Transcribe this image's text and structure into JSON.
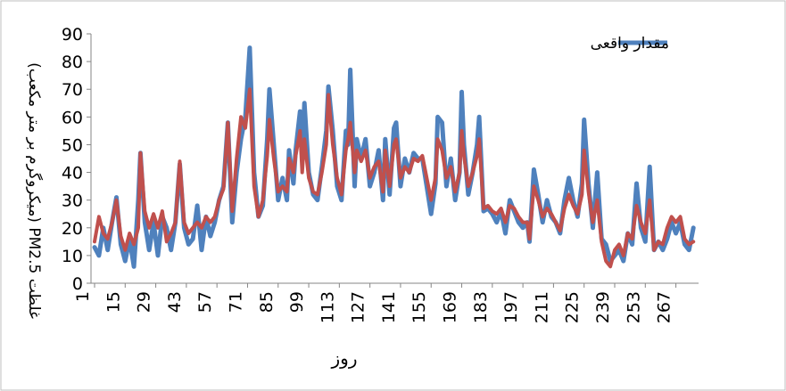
{
  "chart_data": {
    "type": "line",
    "xlabel": "روز",
    "ylabel": "غلظت PM2.5 (میکروگرم بر متر مکعب)",
    "ylim": [
      0,
      90
    ],
    "yticks": [
      0,
      10,
      20,
      30,
      40,
      50,
      60,
      70,
      80,
      90
    ],
    "xticks": [
      1,
      15,
      29,
      43,
      57,
      71,
      85,
      99,
      113,
      127,
      141,
      155,
      169,
      183,
      197,
      211,
      225,
      239,
      253,
      267
    ],
    "xlim": [
      1,
      271
    ],
    "grid": false,
    "legend_position": "top-right",
    "series": [
      {
        "name": "مقدار واقعی",
        "color": "#4F81BD",
        "points": [
          [
            1,
            13
          ],
          [
            3,
            10
          ],
          [
            5,
            20
          ],
          [
            7,
            12
          ],
          [
            9,
            22
          ],
          [
            11,
            31
          ],
          [
            13,
            14
          ],
          [
            15,
            8
          ],
          [
            17,
            16
          ],
          [
            19,
            6
          ],
          [
            21,
            30
          ],
          [
            22,
            47
          ],
          [
            24,
            22
          ],
          [
            26,
            12
          ],
          [
            28,
            22
          ],
          [
            30,
            10
          ],
          [
            32,
            24
          ],
          [
            34,
            20
          ],
          [
            36,
            12
          ],
          [
            38,
            22
          ],
          [
            40,
            43
          ],
          [
            42,
            20
          ],
          [
            44,
            14
          ],
          [
            46,
            16
          ],
          [
            48,
            28
          ],
          [
            50,
            12
          ],
          [
            52,
            24
          ],
          [
            54,
            17
          ],
          [
            56,
            22
          ],
          [
            58,
            30
          ],
          [
            60,
            35
          ],
          [
            62,
            58
          ],
          [
            64,
            22
          ],
          [
            66,
            40
          ],
          [
            68,
            52
          ],
          [
            70,
            60
          ],
          [
            72,
            85
          ],
          [
            74,
            40
          ],
          [
            76,
            24
          ],
          [
            78,
            28
          ],
          [
            80,
            52
          ],
          [
            81,
            70
          ],
          [
            83,
            50
          ],
          [
            85,
            30
          ],
          [
            87,
            38
          ],
          [
            89,
            30
          ],
          [
            90,
            48
          ],
          [
            92,
            36
          ],
          [
            93,
            48
          ],
          [
            95,
            62
          ],
          [
            96,
            45
          ],
          [
            97,
            65
          ],
          [
            99,
            40
          ],
          [
            101,
            32
          ],
          [
            103,
            30
          ],
          [
            105,
            42
          ],
          [
            107,
            55
          ],
          [
            108,
            71
          ],
          [
            110,
            55
          ],
          [
            112,
            35
          ],
          [
            114,
            30
          ],
          [
            116,
            55
          ],
          [
            117,
            50
          ],
          [
            118,
            77
          ],
          [
            120,
            35
          ],
          [
            121,
            52
          ],
          [
            123,
            45
          ],
          [
            125,
            52
          ],
          [
            127,
            35
          ],
          [
            129,
            40
          ],
          [
            131,
            48
          ],
          [
            133,
            30
          ],
          [
            134,
            52
          ],
          [
            136,
            32
          ],
          [
            138,
            56
          ],
          [
            139,
            58
          ],
          [
            141,
            35
          ],
          [
            143,
            45
          ],
          [
            145,
            40
          ],
          [
            147,
            47
          ],
          [
            149,
            45
          ],
          [
            151,
            45
          ],
          [
            153,
            35
          ],
          [
            155,
            25
          ],
          [
            157,
            36
          ],
          [
            158,
            60
          ],
          [
            160,
            58
          ],
          [
            162,
            35
          ],
          [
            164,
            45
          ],
          [
            166,
            30
          ],
          [
            168,
            40
          ],
          [
            169,
            69
          ],
          [
            170,
            50
          ],
          [
            172,
            32
          ],
          [
            174,
            40
          ],
          [
            176,
            50
          ],
          [
            177,
            60
          ],
          [
            179,
            26
          ],
          [
            181,
            27
          ],
          [
            183,
            25
          ],
          [
            185,
            22
          ],
          [
            187,
            26
          ],
          [
            189,
            18
          ],
          [
            191,
            30
          ],
          [
            193,
            26
          ],
          [
            195,
            22
          ],
          [
            197,
            20
          ],
          [
            199,
            22
          ],
          [
            200,
            15
          ],
          [
            202,
            41
          ],
          [
            204,
            32
          ],
          [
            206,
            22
          ],
          [
            208,
            30
          ],
          [
            210,
            24
          ],
          [
            212,
            22
          ],
          [
            214,
            18
          ],
          [
            216,
            30
          ],
          [
            218,
            38
          ],
          [
            220,
            30
          ],
          [
            222,
            24
          ],
          [
            224,
            36
          ],
          [
            225,
            59
          ],
          [
            227,
            36
          ],
          [
            229,
            20
          ],
          [
            231,
            40
          ],
          [
            233,
            16
          ],
          [
            235,
            14
          ],
          [
            237,
            8
          ],
          [
            239,
            10
          ],
          [
            241,
            12
          ],
          [
            243,
            8
          ],
          [
            245,
            18
          ],
          [
            247,
            14
          ],
          [
            249,
            36
          ],
          [
            251,
            20
          ],
          [
            253,
            15
          ],
          [
            255,
            42
          ],
          [
            257,
            12
          ],
          [
            259,
            15
          ],
          [
            261,
            12
          ],
          [
            263,
            16
          ],
          [
            265,
            22
          ],
          [
            267,
            18
          ],
          [
            269,
            22
          ],
          [
            271,
            14
          ],
          [
            273,
            12
          ],
          [
            275,
            20
          ]
        ]
      },
      {
        "name": "",
        "color": "#C0504D",
        "points": [
          [
            1,
            15
          ],
          [
            3,
            24
          ],
          [
            5,
            18
          ],
          [
            7,
            16
          ],
          [
            9,
            22
          ],
          [
            11,
            30
          ],
          [
            13,
            17
          ],
          [
            15,
            12
          ],
          [
            17,
            18
          ],
          [
            19,
            14
          ],
          [
            21,
            20
          ],
          [
            22,
            47
          ],
          [
            24,
            26
          ],
          [
            26,
            20
          ],
          [
            28,
            25
          ],
          [
            30,
            20
          ],
          [
            32,
            26
          ],
          [
            34,
            15
          ],
          [
            36,
            18
          ],
          [
            38,
            22
          ],
          [
            40,
            44
          ],
          [
            42,
            22
          ],
          [
            44,
            18
          ],
          [
            46,
            20
          ],
          [
            48,
            22
          ],
          [
            50,
            20
          ],
          [
            52,
            24
          ],
          [
            54,
            22
          ],
          [
            56,
            24
          ],
          [
            58,
            30
          ],
          [
            60,
            34
          ],
          [
            62,
            58
          ],
          [
            64,
            26
          ],
          [
            66,
            45
          ],
          [
            68,
            60
          ],
          [
            70,
            56
          ],
          [
            72,
            70
          ],
          [
            74,
            35
          ],
          [
            76,
            24
          ],
          [
            78,
            30
          ],
          [
            80,
            46
          ],
          [
            81,
            59
          ],
          [
            83,
            45
          ],
          [
            85,
            33
          ],
          [
            87,
            35
          ],
          [
            89,
            33
          ],
          [
            90,
            45
          ],
          [
            92,
            40
          ],
          [
            93,
            46
          ],
          [
            95,
            55
          ],
          [
            96,
            40
          ],
          [
            97,
            52
          ],
          [
            99,
            38
          ],
          [
            101,
            33
          ],
          [
            103,
            32
          ],
          [
            105,
            40
          ],
          [
            107,
            50
          ],
          [
            108,
            68
          ],
          [
            110,
            50
          ],
          [
            112,
            38
          ],
          [
            114,
            32
          ],
          [
            116,
            48
          ],
          [
            117,
            52
          ],
          [
            118,
            58
          ],
          [
            120,
            40
          ],
          [
            121,
            48
          ],
          [
            123,
            44
          ],
          [
            125,
            48
          ],
          [
            127,
            38
          ],
          [
            129,
            42
          ],
          [
            131,
            44
          ],
          [
            133,
            33
          ],
          [
            134,
            48
          ],
          [
            136,
            35
          ],
          [
            138,
            50
          ],
          [
            139,
            52
          ],
          [
            141,
            38
          ],
          [
            143,
            42
          ],
          [
            145,
            40
          ],
          [
            147,
            45
          ],
          [
            149,
            44
          ],
          [
            151,
            46
          ],
          [
            153,
            38
          ],
          [
            155,
            30
          ],
          [
            157,
            38
          ],
          [
            158,
            52
          ],
          [
            160,
            48
          ],
          [
            162,
            38
          ],
          [
            164,
            42
          ],
          [
            166,
            33
          ],
          [
            168,
            40
          ],
          [
            169,
            55
          ],
          [
            170,
            46
          ],
          [
            172,
            35
          ],
          [
            174,
            40
          ],
          [
            176,
            46
          ],
          [
            177,
            52
          ],
          [
            179,
            27
          ],
          [
            181,
            28
          ],
          [
            183,
            26
          ],
          [
            185,
            25
          ],
          [
            187,
            27
          ],
          [
            189,
            22
          ],
          [
            191,
            28
          ],
          [
            193,
            27
          ],
          [
            195,
            24
          ],
          [
            197,
            22
          ],
          [
            199,
            22
          ],
          [
            200,
            16
          ],
          [
            202,
            35
          ],
          [
            204,
            30
          ],
          [
            206,
            24
          ],
          [
            208,
            27
          ],
          [
            210,
            25
          ],
          [
            212,
            22
          ],
          [
            214,
            19
          ],
          [
            216,
            27
          ],
          [
            218,
            32
          ],
          [
            220,
            28
          ],
          [
            222,
            25
          ],
          [
            224,
            32
          ],
          [
            225,
            48
          ],
          [
            227,
            33
          ],
          [
            229,
            22
          ],
          [
            231,
            30
          ],
          [
            233,
            15
          ],
          [
            235,
            8
          ],
          [
            237,
            6
          ],
          [
            239,
            12
          ],
          [
            241,
            14
          ],
          [
            243,
            10
          ],
          [
            245,
            18
          ],
          [
            247,
            16
          ],
          [
            249,
            28
          ],
          [
            251,
            22
          ],
          [
            253,
            18
          ],
          [
            255,
            30
          ],
          [
            257,
            12
          ],
          [
            259,
            15
          ],
          [
            261,
            14
          ],
          [
            263,
            20
          ],
          [
            265,
            24
          ],
          [
            267,
            22
          ],
          [
            269,
            24
          ],
          [
            271,
            16
          ],
          [
            273,
            14
          ],
          [
            275,
            15
          ]
        ]
      }
    ]
  }
}
